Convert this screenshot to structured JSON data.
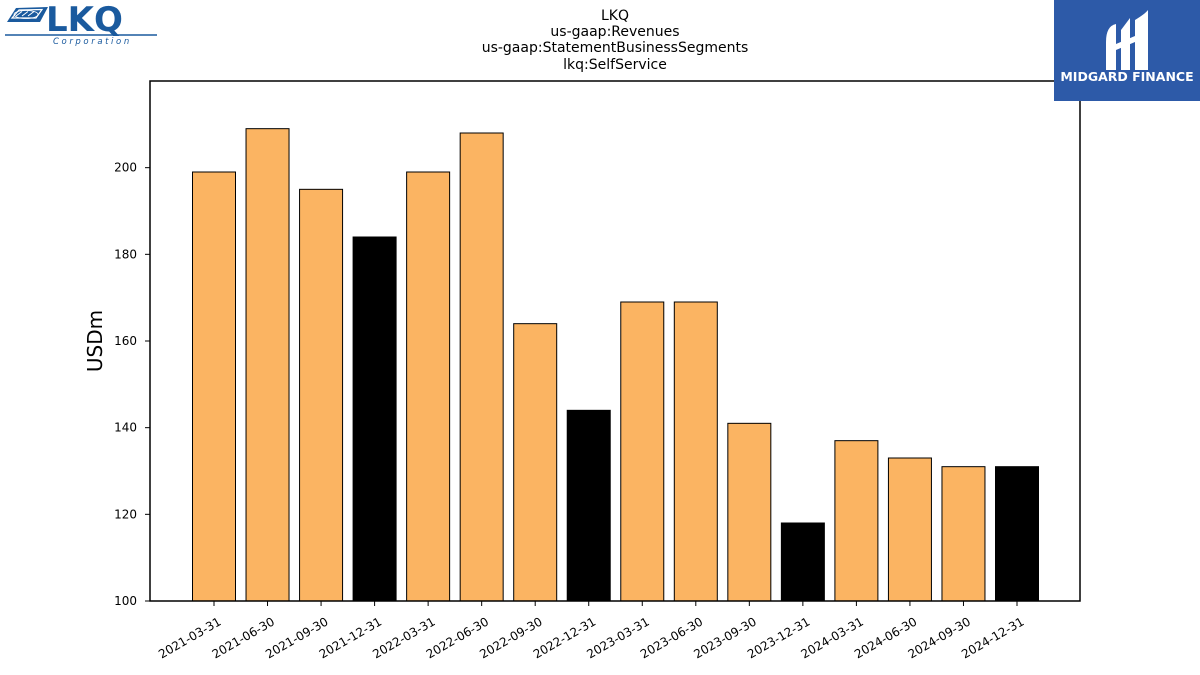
{
  "logos": {
    "left": {
      "name": "LKQ",
      "subtitle": "Corporation"
    },
    "right": {
      "name": "MIDGARD FINANCE"
    }
  },
  "chart_data": {
    "type": "bar",
    "title_lines": [
      "LKQ",
      "us-gaap:Revenues",
      "us-gaap:StatementBusinessSegments",
      "lkq:SelfService"
    ],
    "ylabel": "USDm",
    "xlabel": "",
    "ylim": [
      100,
      220
    ],
    "yticks": [
      100,
      120,
      140,
      160,
      180,
      200
    ],
    "grid": false,
    "categories": [
      "2021-03-31",
      "2021-06-30",
      "2021-09-30",
      "2021-12-31",
      "2022-03-31",
      "2022-06-30",
      "2022-09-30",
      "2022-12-31",
      "2023-03-31",
      "2023-06-30",
      "2023-09-30",
      "2023-12-31",
      "2024-03-31",
      "2024-06-30",
      "2024-09-30",
      "2024-12-31"
    ],
    "values": [
      199,
      209,
      195,
      184,
      199,
      208,
      164,
      144,
      169,
      169,
      141,
      118,
      137,
      133,
      131,
      131
    ],
    "colors": {
      "quarter": "#fbb462",
      "year_end": "#000000",
      "edge": "#000000"
    }
  }
}
